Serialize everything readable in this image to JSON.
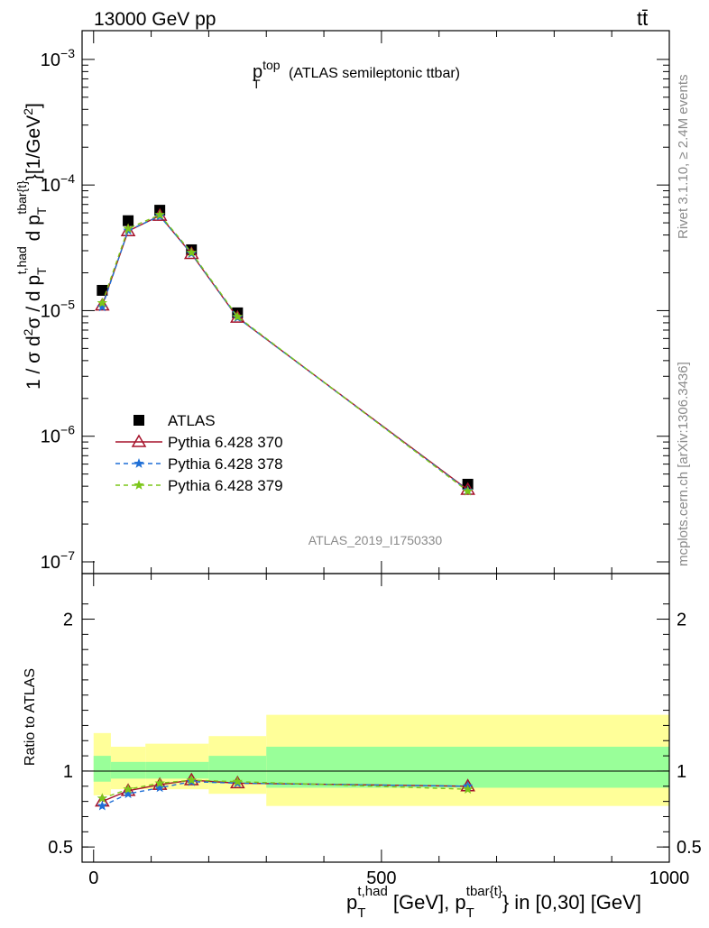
{
  "header": {
    "energy_label": "13000 GeV pp",
    "process_label": "tt̄"
  },
  "side_labels": {
    "rivet": "Rivet 3.1.10, ≥ 2.4M events",
    "mcplots": "mcplots.cern.ch [arXiv:1306.3436]"
  },
  "chart_data": [
    {
      "panel": "main",
      "type": "line",
      "title": "p_T^top (ATLAS semileptonic ttbar)",
      "analysis_label": "ATLAS_2019_I1750330",
      "ylabel": "1 / σ d²σ / d p_T^{t,had} d p_T^{tbar{t}} [1/GeV²]",
      "yscale": "log",
      "ylim": [
        1e-07,
        0.0013
      ],
      "xlim": [
        -20,
        1000
      ],
      "y_ticks": [
        {
          "value": 1e-07,
          "base": "10",
          "exp": "−7"
        },
        {
          "value": 1e-06,
          "base": "10",
          "exp": "−6"
        },
        {
          "value": 1e-05,
          "base": "10",
          "exp": "−5"
        },
        {
          "value": 0.0001,
          "base": "10",
          "exp": "−4"
        },
        {
          "value": 0.001,
          "base": "10",
          "exp": "−3"
        }
      ],
      "legend_position": "left-middle",
      "x": [
        15,
        60,
        115,
        170,
        250,
        650
      ],
      "series": [
        {
          "name": "ATLAS",
          "color": "#000000",
          "marker": "square",
          "values": [
            1.45e-05,
            5.2e-05,
            6.3e-05,
            3.05e-05,
            9.6e-06,
            4.15e-07
          ]
        },
        {
          "name": "Pythia 6.428 370",
          "color": "#a5122a",
          "marker": "triangle",
          "dash": "",
          "values": [
            1.1e-05,
            4.3e-05,
            5.7e-05,
            2.83e-05,
            8.8e-06,
            3.75e-07
          ]
        },
        {
          "name": "Pythia 6.428 378",
          "color": "#1f6fd6",
          "marker": "star",
          "dash": "5,4",
          "values": [
            1.07e-05,
            4.35e-05,
            5.65e-05,
            2.85e-05,
            8.8e-06,
            3.7e-07
          ]
        },
        {
          "name": "Pythia 6.428 379",
          "color": "#7cc61a",
          "marker": "star",
          "dash": "5,4",
          "values": [
            1.15e-05,
            4.5e-05,
            5.8e-05,
            2.9e-05,
            8.95e-06,
            3.65e-07
          ]
        }
      ]
    },
    {
      "panel": "ratio",
      "type": "line",
      "ylabel": "Ratio to ATLAS",
      "xlabel": "p_T^{t,had} [GeV], p_T^{tbar{t}} in [0,30] [GeV]",
      "ylim": [
        0.4,
        2.3
      ],
      "xlim": [
        -20,
        1000
      ],
      "y_ticks": [
        0.5,
        1,
        2
      ],
      "x_ticks": [
        0,
        500,
        1000
      ],
      "x": [
        15,
        60,
        115,
        170,
        250,
        650
      ],
      "bands": [
        {
          "x0": 0,
          "x1": 30,
          "inner": [
            0.93,
            1.1
          ],
          "outer": [
            0.84,
            1.25
          ]
        },
        {
          "x0": 30,
          "x1": 90,
          "inner": [
            0.95,
            1.06
          ],
          "outer": [
            0.88,
            1.16
          ]
        },
        {
          "x0": 90,
          "x1": 200,
          "inner": [
            0.95,
            1.06
          ],
          "outer": [
            0.88,
            1.18
          ]
        },
        {
          "x0": 200,
          "x1": 300,
          "inner": [
            0.92,
            1.1
          ],
          "outer": [
            0.85,
            1.23
          ]
        },
        {
          "x0": 300,
          "x1": 1000,
          "inner": [
            0.89,
            1.16
          ],
          "outer": [
            0.77,
            1.37
          ]
        }
      ],
      "band_colors": {
        "inner": "#99ff99",
        "outer": "#ffff99"
      },
      "series": [
        {
          "name": "Pythia 6.428 370",
          "color": "#a5122a",
          "marker": "triangle",
          "dash": "",
          "values": [
            0.8,
            0.87,
            0.91,
            0.94,
            0.92,
            0.9
          ]
        },
        {
          "name": "Pythia 6.428 378",
          "color": "#1f6fd6",
          "marker": "star",
          "dash": "5,4",
          "values": [
            0.77,
            0.85,
            0.89,
            0.93,
            0.92,
            0.9
          ]
        },
        {
          "name": "Pythia 6.428 379",
          "color": "#7cc61a",
          "marker": "star",
          "dash": "5,4",
          "values": [
            0.82,
            0.88,
            0.92,
            0.94,
            0.93,
            0.88
          ]
        }
      ]
    }
  ]
}
